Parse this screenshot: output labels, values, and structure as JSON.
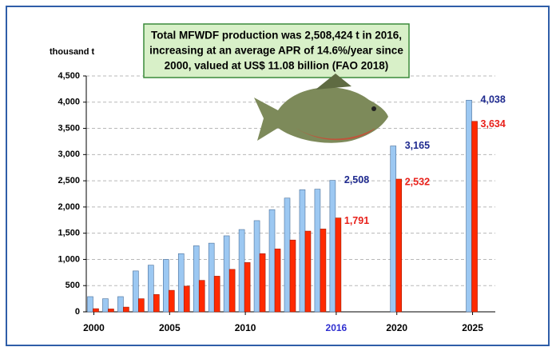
{
  "chart_data": {
    "type": "bar",
    "title_lines": [
      "Total MFWDF production was 2,508,424 t in 2016,",
      "increasing at an average APR of 14.6%/year since",
      "2000, valued at US$ 11.08 billion (FAO 2018)"
    ],
    "y_label": "thousand t",
    "x": [
      2000,
      2001,
      2002,
      2003,
      2004,
      2005,
      2006,
      2007,
      2008,
      2009,
      2010,
      2011,
      2012,
      2013,
      2014,
      2015,
      2016,
      2020,
      2025
    ],
    "series": [
      {
        "color": "#9cc8f2",
        "label_color": "#1f2a8f",
        "values": [
          290,
          250,
          290,
          780,
          890,
          1000,
          1110,
          1260,
          1310,
          1450,
          1570,
          1740,
          1950,
          2170,
          2330,
          2340,
          2508,
          3165,
          4038
        ],
        "value_labels": [
          null,
          null,
          null,
          null,
          null,
          null,
          null,
          null,
          null,
          null,
          null,
          null,
          null,
          null,
          null,
          null,
          "2,508",
          "3,165",
          "4,038"
        ]
      },
      {
        "color": "#ff2a00",
        "label_color": "#e8201a",
        "values": [
          60,
          55,
          90,
          250,
          330,
          410,
          490,
          600,
          680,
          810,
          940,
          1110,
          1200,
          1370,
          1540,
          1580,
          1791,
          2532,
          3634
        ],
        "value_labels": [
          null,
          null,
          null,
          null,
          null,
          null,
          null,
          null,
          null,
          null,
          null,
          null,
          null,
          null,
          null,
          null,
          "1,791",
          "2,532",
          "3,634"
        ]
      }
    ],
    "xlim": [
      1999.5,
      2026.5
    ],
    "xticks": [
      2000,
      2005,
      2010,
      2016,
      2020,
      2025
    ],
    "xtick_colors": [
      "#000000",
      "#000000",
      "#000000",
      "#2f2fd0",
      "#000000",
      "#000000"
    ],
    "ylim": [
      0,
      4500
    ],
    "yticks": [
      0,
      {
        "value": 500,
        "label": "500"
      },
      {
        "value": 1000,
        "label": "1,000"
      },
      {
        "value": 1500,
        "label": "1,500"
      },
      {
        "value": 2000,
        "label": "2,000"
      },
      {
        "value": 2500,
        "label": "2,500"
      },
      {
        "value": 3000,
        "label": "3,000"
      },
      {
        "value": 3500,
        "label": "3,500"
      },
      {
        "value": 4000,
        "label": "4,000"
      },
      {
        "value": 4500,
        "label": "4,500"
      }
    ],
    "grid": true
  }
}
